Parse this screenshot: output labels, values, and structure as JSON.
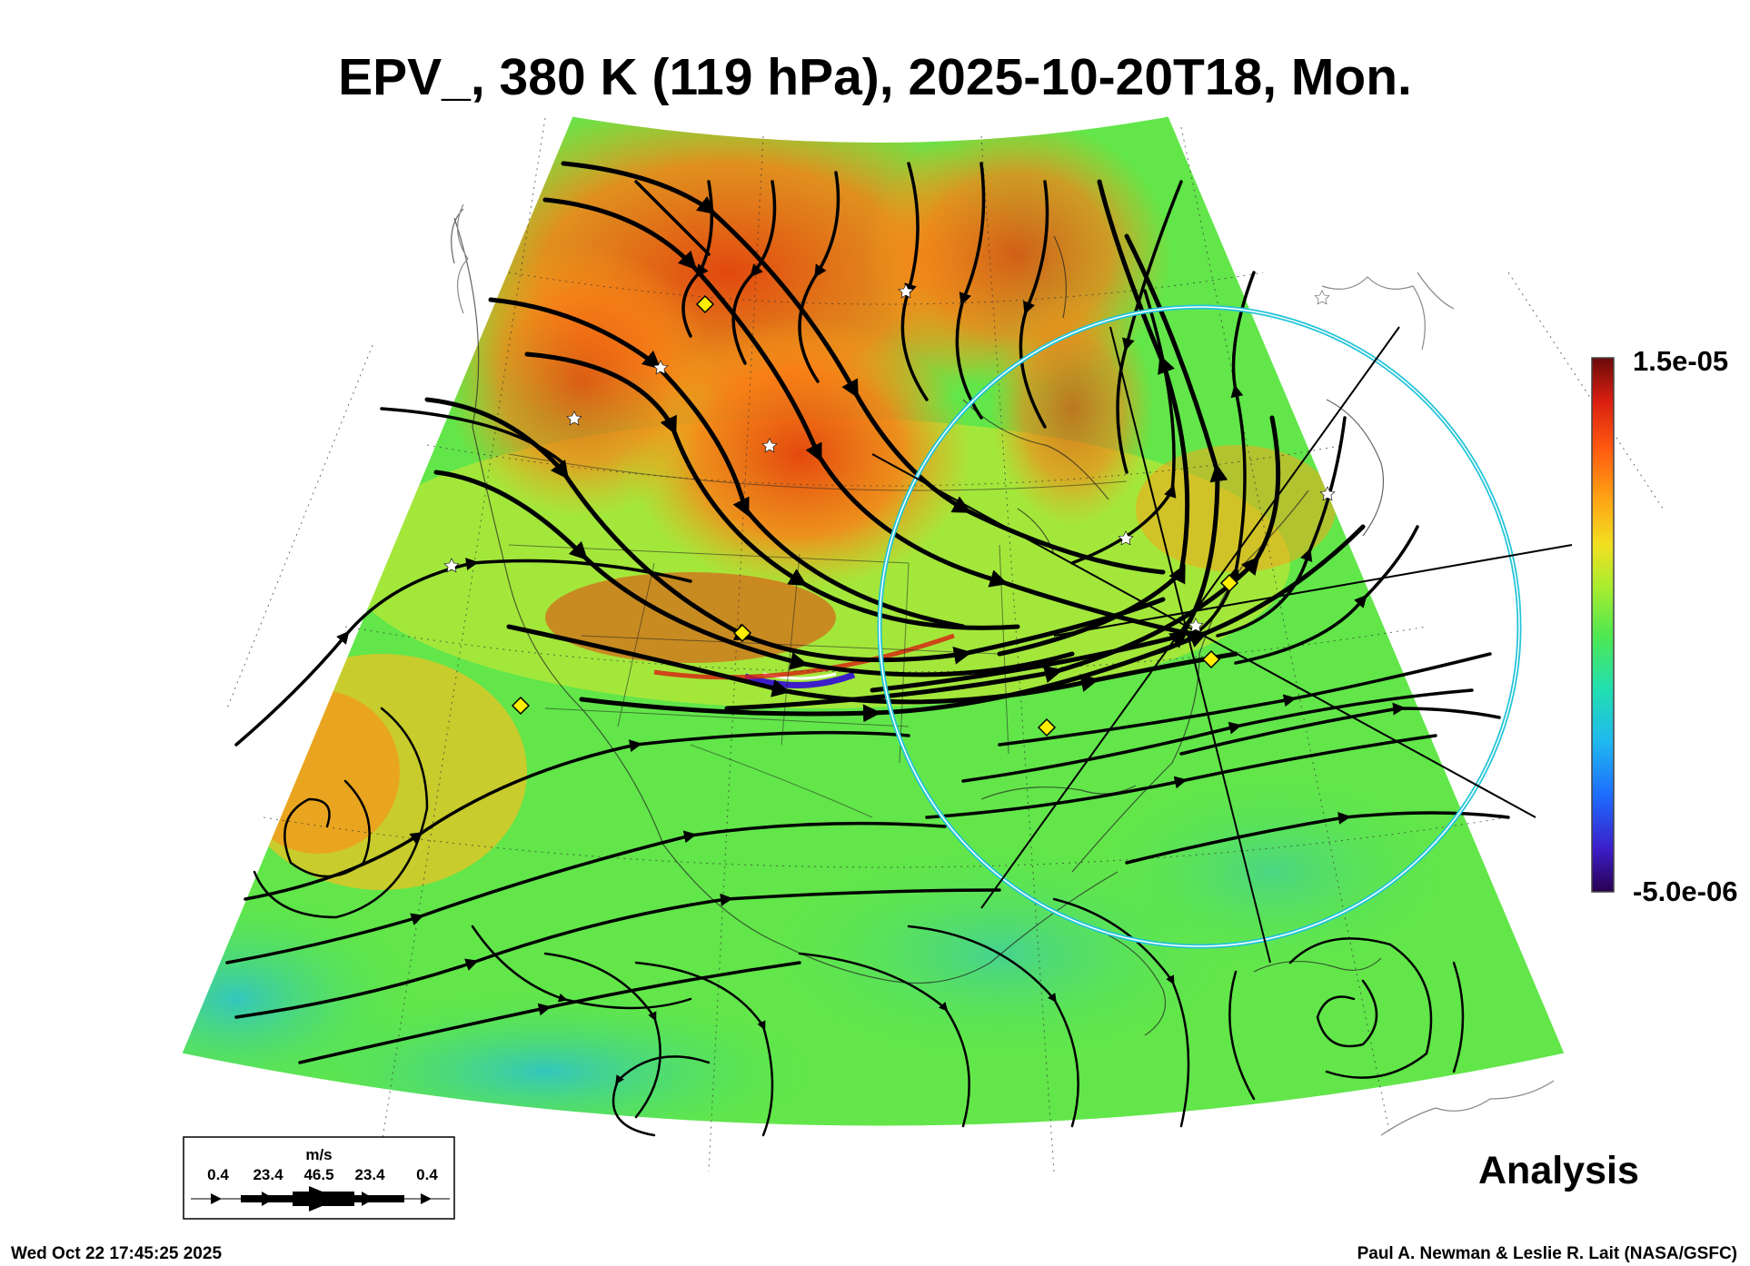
{
  "title": "EPV_, 380 K (119 hPa), 2025-10-20T18, Mon.",
  "colorbar": {
    "max_label": "1.5e-05",
    "min_label": "-5.0e-06",
    "colors": [
      "#2a0050",
      "#3b1ec8",
      "#1e6cff",
      "#1fb8f0",
      "#22e0b0",
      "#4ee850",
      "#a8ec30",
      "#f2e020",
      "#ffa014",
      "#ff5a10",
      "#d81e10",
      "#6a0a0a"
    ]
  },
  "wind_legend": {
    "unit": "m/s",
    "values": [
      "0.4",
      "23.4",
      "46.5",
      "23.4",
      "0.4"
    ]
  },
  "label": "Analysis",
  "timestamp": "Wed Oct 22 17:45:25 2025",
  "credit": "Paul A. Newman & Leslie R. Lait (NASA/GSFC)",
  "colors": {
    "streamline": "#000000",
    "circle": "#22c4d8",
    "marker_fill": "#ffee00",
    "star_fill": "#ffffff"
  },
  "icons": [
    "diamond-marker",
    "star-marker",
    "streamline-arrow"
  ]
}
